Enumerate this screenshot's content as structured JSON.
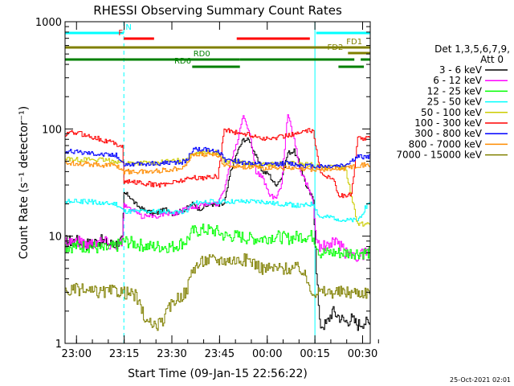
{
  "chart_data": {
    "type": "line",
    "title": "RHESSI Observing Summary Count Rates",
    "xlabel": "Start Time (09-Jan-15 22:56:22)",
    "ylabel": "Count Rate (s⁻¹ detector⁻¹)",
    "yscale": "log",
    "ylim": [
      1,
      1000
    ],
    "xlim_minutes": [
      0,
      96
    ],
    "x_ticks": [
      {
        "label": "23:00",
        "t": 3.6
      },
      {
        "label": "23:15",
        "t": 18.6
      },
      {
        "label": "23:30",
        "t": 33.6
      },
      {
        "label": "23:45",
        "t": 48.6
      },
      {
        "label": "00:00",
        "t": 63.6
      },
      {
        "label": "00:15",
        "t": 78.6
      },
      {
        "label": "00:30",
        "t": 93.6
      }
    ],
    "y_ticks": [
      {
        "label": "1",
        "v": 1
      },
      {
        "label": "10",
        "v": 10
      },
      {
        "label": "100",
        "v": 100
      },
      {
        "label": "1000",
        "v": 1000
      }
    ],
    "legend": {
      "header": [
        "Det 1,3,5,6,7,9,",
        "Att 0"
      ],
      "position": "right"
    },
    "series": [
      {
        "name": "3 - 6 keV",
        "color": "#000000",
        "x": [
          0,
          2,
          4,
          6,
          8,
          10,
          12,
          14,
          16,
          18,
          18.5,
          20,
          22,
          24,
          26,
          28,
          30,
          32,
          34,
          36,
          38,
          40,
          42,
          44,
          46,
          48,
          50,
          52,
          54,
          56,
          58,
          60,
          62,
          64,
          66,
          68,
          70,
          72,
          74,
          76,
          78,
          79,
          80,
          82,
          84,
          86,
          88,
          90,
          92,
          94,
          96
        ],
        "values": [
          9,
          9,
          9,
          8.5,
          8.5,
          9,
          9,
          8.5,
          8.5,
          9,
          25,
          24,
          20,
          18,
          17,
          16,
          17,
          18,
          16,
          17,
          18,
          20,
          18,
          19,
          20,
          19,
          20,
          40,
          60,
          80,
          78,
          55,
          40,
          38,
          30,
          35,
          60,
          62,
          45,
          28,
          22,
          5,
          1.5,
          1.5,
          2,
          1.8,
          1.6,
          1.7,
          1.5,
          1.6,
          1.5
        ]
      },
      {
        "name": "6 - 12 keV",
        "color": "#ff00ff",
        "x": [
          0,
          2,
          4,
          6,
          8,
          10,
          12,
          14,
          16,
          18,
          18.5,
          20,
          22,
          24,
          26,
          28,
          30,
          32,
          34,
          36,
          38,
          40,
          42,
          44,
          46,
          48,
          50,
          52,
          54,
          56,
          58,
          60,
          62,
          64,
          66,
          68,
          70,
          72,
          74,
          76,
          78,
          79,
          80,
          82,
          84,
          86,
          88,
          90,
          92,
          94,
          96
        ],
        "values": [
          9,
          9,
          9,
          8.5,
          8.5,
          9,
          9,
          8.5,
          8.5,
          9,
          20,
          18,
          17,
          15,
          16,
          15,
          16,
          16,
          16,
          17,
          18,
          19,
          19,
          20,
          20,
          20,
          28,
          50,
          75,
          140,
          90,
          40,
          35,
          25,
          22,
          30,
          140,
          80,
          40,
          30,
          20,
          9,
          8,
          8,
          8.5,
          8.5,
          7,
          7,
          6.5,
          7,
          7
        ]
      },
      {
        "name": "12 - 25 keV",
        "color": "#00ff00",
        "x": [
          0,
          4,
          8,
          12,
          16,
          18.5,
          22,
          26,
          30,
          34,
          38,
          40,
          44,
          48,
          50,
          54,
          58,
          62,
          66,
          70,
          74,
          78,
          80,
          84,
          88,
          92,
          96
        ],
        "values": [
          8,
          8,
          8,
          7.5,
          8,
          9,
          8.5,
          8,
          8,
          8,
          9,
          11,
          11.5,
          11,
          10,
          10,
          9.5,
          9.5,
          10,
          9.5,
          10,
          10,
          7,
          7,
          7,
          7,
          7
        ]
      },
      {
        "name": "25 - 50 keV",
        "color": "#00ffff",
        "x": [
          0,
          4,
          8,
          12,
          16,
          18.5,
          22,
          26,
          30,
          34,
          38,
          40,
          44,
          48,
          50,
          54,
          58,
          62,
          66,
          70,
          74,
          78,
          80,
          84,
          88,
          92,
          96
        ],
        "values": [
          21,
          21,
          21,
          20,
          20,
          17,
          17,
          17,
          17,
          17,
          17,
          20,
          21,
          21,
          21,
          21,
          21,
          21,
          20,
          20,
          19,
          20,
          15,
          15,
          14,
          14,
          22
        ]
      },
      {
        "name": "50 - 100 keV",
        "color": "#cccc00",
        "x": [
          0,
          4,
          8,
          12,
          16,
          18.5,
          22,
          26,
          30,
          34,
          38,
          40,
          44,
          48,
          50,
          54,
          58,
          62,
          66,
          70,
          74,
          78,
          80,
          84,
          88,
          92,
          96
        ],
        "values": [
          53,
          52,
          52,
          51,
          50,
          48,
          48,
          48,
          49,
          50,
          52,
          60,
          61,
          60,
          50,
          49,
          47,
          46,
          47,
          48,
          47,
          46,
          44,
          44,
          44,
          13,
          13
        ]
      },
      {
        "name": "100 - 300 keV",
        "color": "#ff0000",
        "x": [
          0,
          2,
          4,
          6,
          8,
          10,
          12,
          14,
          16,
          18,
          18.5,
          20,
          22,
          24,
          26,
          28,
          30,
          32,
          34,
          36,
          38,
          40,
          42,
          44,
          46,
          48,
          50,
          52,
          54,
          56,
          58,
          60,
          62,
          64,
          66,
          68,
          70,
          72,
          74,
          76,
          78,
          80,
          82,
          84,
          86,
          88,
          90,
          92,
          94,
          96
        ],
        "values": [
          88,
          92,
          92,
          88,
          85,
          82,
          78,
          76,
          72,
          70,
          32,
          32,
          32,
          31,
          31,
          30,
          30,
          31,
          32,
          33,
          34,
          35,
          35,
          35,
          36,
          36,
          100,
          95,
          92,
          90,
          88,
          85,
          82,
          80,
          83,
          85,
          88,
          90,
          92,
          95,
          98,
          40,
          36,
          36,
          24,
          24,
          24,
          82,
          82,
          82
        ]
      },
      {
        "name": "300 - 800 keV",
        "color": "#0000ff",
        "x": [
          0,
          4,
          8,
          12,
          16,
          18.5,
          22,
          26,
          30,
          34,
          38,
          40,
          44,
          48,
          50,
          54,
          58,
          62,
          66,
          70,
          74,
          78,
          80,
          84,
          88,
          92,
          96
        ],
        "values": [
          62,
          61,
          60,
          58,
          57,
          47,
          47,
          47,
          48,
          48,
          50,
          64,
          64,
          63,
          52,
          50,
          48,
          46,
          47,
          48,
          46,
          45,
          45,
          45,
          46,
          55,
          55
        ]
      },
      {
        "name": "800 - 7000 keV",
        "color": "#ff8c00",
        "x": [
          0,
          4,
          8,
          12,
          16,
          18.5,
          22,
          26,
          30,
          34,
          38,
          40,
          44,
          48,
          50,
          54,
          58,
          62,
          66,
          70,
          74,
          78,
          80,
          84,
          88,
          92,
          96
        ],
        "values": [
          48,
          48,
          47,
          46,
          46,
          40,
          40,
          40,
          41,
          42,
          46,
          58,
          58,
          57,
          46,
          45,
          44,
          43,
          44,
          43,
          42,
          42,
          42,
          42,
          43,
          46,
          46
        ]
      },
      {
        "name": "7000 - 15000 keV",
        "color": "#808000",
        "x": [
          0,
          4,
          8,
          12,
          16,
          18.5,
          22,
          26,
          30,
          34,
          38,
          40,
          44,
          48,
          50,
          54,
          58,
          62,
          66,
          70,
          74,
          78,
          80,
          84,
          88,
          92,
          96
        ],
        "values": [
          3,
          3.2,
          3,
          3,
          3.1,
          3,
          2.8,
          1.5,
          1.5,
          2.5,
          3,
          5,
          6,
          6,
          6,
          6,
          6,
          5,
          5,
          5,
          5,
          3,
          3,
          3,
          3,
          3,
          3
        ]
      }
    ],
    "flag_bars": [
      {
        "label": "N",
        "color": "#00ffff",
        "label_t": 20,
        "segments": [
          [
            0,
            18.5
          ],
          [
            79,
            96
          ]
        ]
      },
      {
        "label": "F",
        "color": "#ff0000",
        "label_t": 17.5,
        "segments": [
          [
            18.5,
            28
          ],
          [
            54,
            77
          ]
        ]
      },
      {
        "label": "FD1",
        "color": "#808000",
        "label_t": 91,
        "segments": [
          [
            0,
            96
          ]
        ]
      },
      {
        "label": "FD2",
        "color": "#808000",
        "label_t": 85,
        "segments": [
          [
            89,
            96
          ]
        ]
      },
      {
        "label": "RD0",
        "color": "#008000",
        "label_t": 43,
        "segments": [
          [
            0,
            55
          ],
          [
            55,
            91
          ],
          [
            93,
            96
          ]
        ]
      },
      {
        "label": "RD6",
        "color": "#008000",
        "label_t": 37,
        "segments": [
          [
            40,
            55
          ],
          [
            86,
            94
          ]
        ]
      }
    ],
    "vlines": [
      {
        "t": 0,
        "color": "#00ffff",
        "style": "solid"
      },
      {
        "t": 18.5,
        "color": "#00ffff",
        "style": "dashed"
      },
      {
        "t": 78.6,
        "color": "#00ffff",
        "style": "solid"
      },
      {
        "t": 96,
        "color": "#00ffff",
        "style": "dashed"
      }
    ],
    "footer": "25-Oct-2021 02:01"
  }
}
